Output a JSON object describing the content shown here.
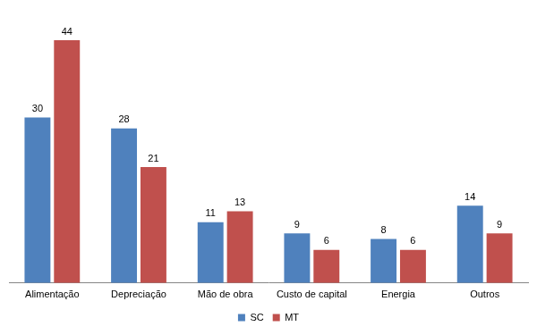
{
  "chart_data": {
    "type": "bar",
    "categories": [
      "Alimentação",
      "Depreciação",
      "Mão de obra",
      "Custo de capital",
      "Energia",
      "Outros"
    ],
    "series": [
      {
        "name": "SC",
        "color": "#4F81BD",
        "values": [
          30,
          28,
          11,
          9,
          8,
          14
        ]
      },
      {
        "name": "MT",
        "color": "#C0504D",
        "values": [
          44,
          21,
          13,
          6,
          6,
          9
        ]
      }
    ],
    "ylim": [
      0,
      50
    ],
    "grid": false,
    "legend": "bottom",
    "data_labels": true,
    "tick_labels": "x"
  }
}
